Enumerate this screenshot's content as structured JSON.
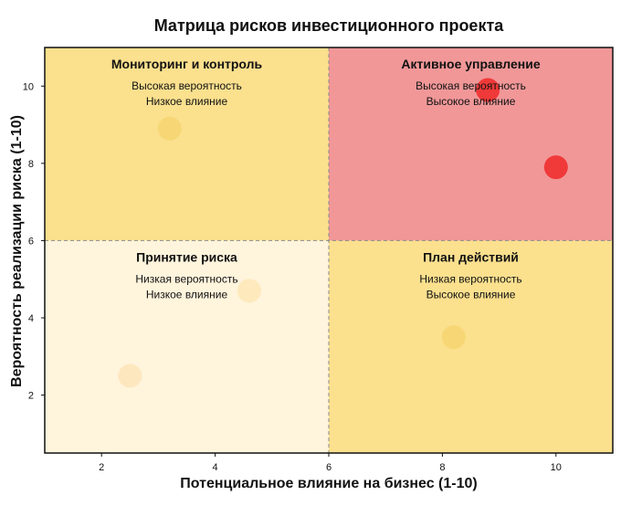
{
  "chart_data": {
    "type": "scatter",
    "title": "Матрица рисков инвестиционного проекта",
    "xlabel": "Потенциальное влияние на бизнес (1-10)",
    "ylabel": "Вероятность реализации риска (1-10)",
    "xlim": [
      1,
      11
    ],
    "ylim": [
      0.5,
      11
    ],
    "xticks": [
      2,
      4,
      6,
      8,
      10
    ],
    "yticks": [
      2,
      4,
      6,
      8,
      10
    ],
    "grid": false,
    "legend": "none",
    "thresholds": {
      "x": 6,
      "y": 6
    },
    "quadrants": [
      {
        "id": "monitoring",
        "title": "Мониторинг и контроль",
        "line1": "Высокая вероятность",
        "line2": "Низкое влияние",
        "color": "#fbe08e",
        "x_range": [
          1,
          6
        ],
        "y_range": [
          6,
          11
        ]
      },
      {
        "id": "active",
        "title": "Активное управление",
        "line1": "Высокая вероятность",
        "line2": "Высокое влияние",
        "color": "#f19798",
        "x_range": [
          6,
          11
        ],
        "y_range": [
          6,
          11
        ]
      },
      {
        "id": "accept",
        "title": "Принятие риска",
        "line1": "Низкая вероятность",
        "line2": "Низкое влияние",
        "color": "#fff4dc",
        "x_range": [
          1,
          6
        ],
        "y_range": [
          0.5,
          6
        ]
      },
      {
        "id": "plan",
        "title": "План действий",
        "line1": "Низкая вероятность",
        "line2": "Высокое влияние",
        "color": "#fbe08e",
        "x_range": [
          6,
          11
        ],
        "y_range": [
          0.5,
          6
        ]
      }
    ],
    "points": [
      {
        "x": 3.2,
        "y": 8.9,
        "color": "#f6d672"
      },
      {
        "x": 8.8,
        "y": 9.9,
        "color": "#ef2f2f"
      },
      {
        "x": 10.0,
        "y": 7.9,
        "color": "#ef2f2f"
      },
      {
        "x": 4.6,
        "y": 4.7,
        "color": "#fde8b8"
      },
      {
        "x": 2.5,
        "y": 2.5,
        "color": "#fde5bb"
      },
      {
        "x": 8.2,
        "y": 3.5,
        "color": "#f6d672"
      }
    ]
  }
}
